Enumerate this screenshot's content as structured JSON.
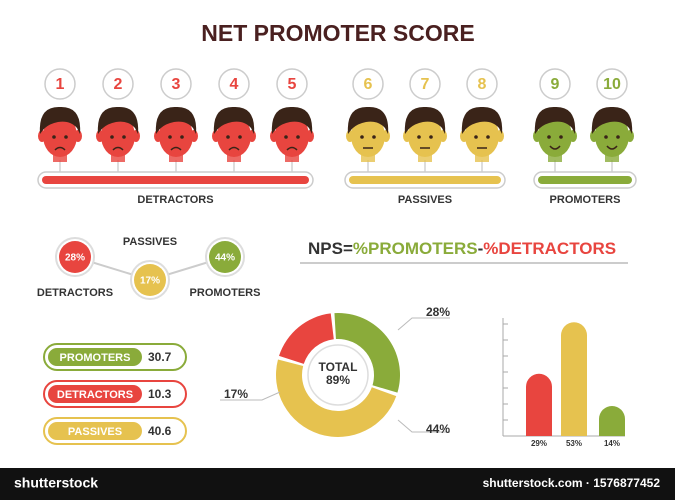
{
  "title": "NET PROMOTER SCORE",
  "groups": [
    {
      "label": "DETRACTORS",
      "color": "#e8453f",
      "scores": [
        "1",
        "2",
        "3",
        "4",
        "5"
      ]
    },
    {
      "label": "PASSIVES",
      "color": "#e6c24f",
      "scores": [
        "6",
        "7",
        "8"
      ]
    },
    {
      "label": "PROMOTERS",
      "color": "#8aab3a",
      "scores": [
        "9",
        "10"
      ]
    }
  ],
  "formula": {
    "left": "NPS=",
    "promoters": "%PROMOTERS",
    "minus": "-",
    "detractors": "%DETRACTORS"
  },
  "bubbles": [
    {
      "label": "DETRACTORS",
      "text": "28%",
      "color": "#e8453f"
    },
    {
      "label": "PASSIVES",
      "text": "17%",
      "color": "#e6c24f"
    },
    {
      "label": "PROMOTERS",
      "text": "44%",
      "color": "#8aab3a"
    }
  ],
  "pills": [
    {
      "label": "PROMOTERS",
      "value": "30.7",
      "color": "#8aab3a"
    },
    {
      "label": "DETRACTORS",
      "value": "10.3",
      "color": "#e8453f"
    },
    {
      "label": "PASSIVES",
      "value": "40.6",
      "color": "#e6c24f"
    }
  ],
  "chart_data": [
    {
      "type": "pie",
      "donut": true,
      "values": [
        28,
        44,
        17
      ],
      "value_labels": [
        "28%",
        "44%",
        "17%"
      ],
      "colors": [
        "#8aab3a",
        "#e6c24f",
        "#e8453f"
      ],
      "center_text": [
        "TOTAL",
        "89%"
      ]
    },
    {
      "type": "bar",
      "values": [
        29,
        53,
        14
      ],
      "value_labels": [
        "29%",
        "53%",
        "14%"
      ],
      "colors": [
        "#e8453f",
        "#e6c24f",
        "#8aab3a"
      ],
      "ylim": [
        0,
        55
      ]
    }
  ],
  "footer": {
    "brand": "shutterstock",
    "text": "shutterstock.com · 1576877452"
  }
}
